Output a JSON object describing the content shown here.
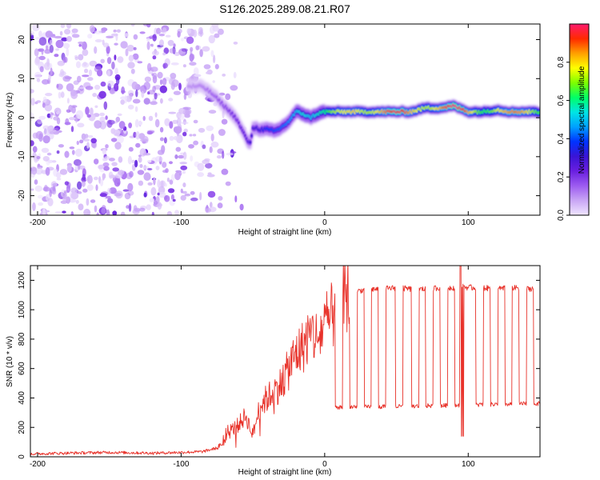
{
  "title": "S126.2025.289.08.21.R07",
  "colors": {
    "snr_line": "#e8322a",
    "axis": "#000000",
    "colormap": [
      "#f0e6ff",
      "#c9a6f5",
      "#9d5cf0",
      "#6a1fe0",
      "#3a14d6",
      "#0033ff",
      "#00a0ff",
      "#00e5e5",
      "#00ff66",
      "#7dff00",
      "#ffff00",
      "#ffa000",
      "#ff2a00",
      "#ff1a6e"
    ]
  },
  "chart_data": [
    {
      "type": "heatmap",
      "xlabel": "Height of straight line (km)",
      "ylabel": "Frequency (Hz)",
      "xlim": [
        -205,
        150
      ],
      "ylim": [
        -25,
        24
      ],
      "x_ticks": [
        -200,
        -100,
        0,
        100
      ],
      "y_ticks": [
        -20,
        -10,
        0,
        10,
        20
      ],
      "colorbar": {
        "label": "Normalized spectral amplitude",
        "range": [
          0.0,
          1.0
        ],
        "ticks": [
          "0.0",
          "0.2",
          "0.4",
          "0.6",
          "0.8"
        ],
        "tick_values": [
          0.0,
          0.2,
          0.4,
          0.6,
          0.8
        ]
      },
      "ridge": {
        "x": [
          -95,
          -85,
          -78,
          -70,
          -62,
          -55,
          -52,
          -50,
          -45,
          -40,
          -35,
          -30,
          -25,
          -20,
          -15,
          -10,
          -5,
          0,
          5,
          10,
          20,
          30,
          40,
          50,
          60,
          70,
          80,
          90,
          100,
          110,
          120,
          130,
          140,
          150
        ],
        "freq": [
          8,
          8,
          6,
          3,
          0,
          -5,
          -7,
          -2.5,
          -3,
          -3,
          -3.5,
          -2.5,
          -1,
          1.5,
          1,
          0,
          1,
          1.5,
          1.5,
          1.5,
          1.5,
          1.5,
          1.5,
          1.5,
          1.5,
          2.5,
          2.5,
          3,
          1.5,
          1.5,
          2,
          1.5,
          1.5,
          1.5
        ],
        "amplitude": [
          0.1,
          0.12,
          0.15,
          0.18,
          0.22,
          0.25,
          0.3,
          0.3,
          0.32,
          0.38,
          0.4,
          0.42,
          0.45,
          0.5,
          0.55,
          0.5,
          0.55,
          0.6,
          0.7,
          0.75,
          0.8,
          0.85,
          0.85,
          0.85,
          0.8,
          0.85,
          0.85,
          0.9,
          0.8,
          0.75,
          0.8,
          0.75,
          0.75,
          0.75
        ]
      }
    },
    {
      "type": "line",
      "xlabel": "Height of straight line (km)",
      "ylabel": "SNR (10 * v/v)",
      "xlim": [
        -205,
        150
      ],
      "ylim": [
        0,
        1300
      ],
      "x_ticks": [
        -200,
        -100,
        0,
        100
      ],
      "y_ticks": [
        0,
        200,
        400,
        600,
        800,
        1000,
        1200
      ],
      "series": [
        {
          "name": "SNR",
          "x": [
            -205,
            -180,
            -150,
            -120,
            -100,
            -85,
            -75,
            -70,
            -65,
            -60,
            -55,
            -50,
            -45,
            -40,
            -35,
            -30,
            -25,
            -20,
            -15,
            -10,
            -5,
            0,
            5,
            10,
            15,
            20,
            25,
            30,
            40,
            50,
            60,
            70,
            80,
            90,
            95,
            100,
            110,
            120,
            130,
            140,
            150
          ],
          "y": [
            20,
            25,
            30,
            25,
            30,
            35,
            60,
            100,
            180,
            220,
            280,
            150,
            350,
            400,
            450,
            500,
            600,
            700,
            750,
            850,
            800,
            900,
            950,
            1050,
            1100,
            1120,
            1130,
            1140,
            1140,
            1150,
            1140,
            1140,
            1150,
            1150,
            1160,
            1150,
            1150,
            1140,
            1150,
            1140,
            1150
          ],
          "dips": [
            10,
            20,
            30,
            40,
            52,
            63,
            73,
            83,
            93,
            108,
            118,
            128,
            138,
            148
          ],
          "dip_level": 340
        }
      ]
    }
  ]
}
